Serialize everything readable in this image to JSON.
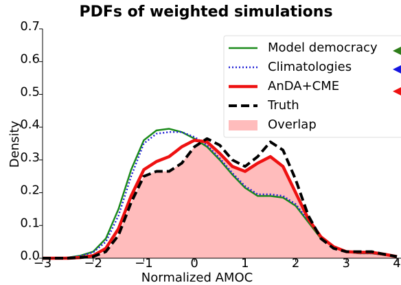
{
  "chart_data": {
    "type": "line",
    "title": "PDFs of weighted simulations",
    "x_label": "Normalized AMOC",
    "y_label": "Density",
    "x": [
      -3,
      -2.75,
      -2.5,
      -2.25,
      -2,
      -1.75,
      -1.5,
      -1.25,
      -1,
      -0.75,
      -0.5,
      -0.25,
      0,
      0.25,
      0.5,
      0.75,
      1,
      1.25,
      1.5,
      1.75,
      2,
      2.25,
      2.5,
      2.75,
      3,
      3.25,
      3.5,
      3.75,
      4
    ],
    "series": [
      {
        "name": "Model democracy",
        "color": "#1a8a1a",
        "style": "solid",
        "values": [
          0,
          0,
          0.002,
          0.008,
          0.02,
          0.06,
          0.15,
          0.27,
          0.36,
          0.39,
          0.395,
          0.385,
          0.365,
          0.34,
          0.3,
          0.255,
          0.215,
          0.19,
          0.19,
          0.185,
          0.16,
          0.11,
          0.06,
          0.035,
          0.02,
          0.015,
          0.015,
          0.01,
          0.005
        ]
      },
      {
        "name": "Climatologies",
        "color": "#1f1fd6",
        "style": "dotted",
        "values": [
          0,
          0,
          0.002,
          0.007,
          0.018,
          0.05,
          0.13,
          0.25,
          0.35,
          0.38,
          0.385,
          0.385,
          0.37,
          0.345,
          0.305,
          0.26,
          0.22,
          0.195,
          0.195,
          0.19,
          0.165,
          0.115,
          0.065,
          0.035,
          0.02,
          0.015,
          0.015,
          0.01,
          0.005
        ]
      },
      {
        "name": "AnDA+CME",
        "color": "#ee1111",
        "style": "thick",
        "values": [
          0,
          0,
          0,
          0.002,
          0.008,
          0.03,
          0.09,
          0.19,
          0.27,
          0.295,
          0.31,
          0.34,
          0.36,
          0.355,
          0.32,
          0.28,
          0.265,
          0.29,
          0.31,
          0.28,
          0.2,
          0.12,
          0.065,
          0.035,
          0.02,
          0.018,
          0.018,
          0.012,
          0.005
        ]
      },
      {
        "name": "Truth",
        "color": "#000000",
        "style": "dashed",
        "values": [
          0,
          0,
          0,
          0.002,
          0.005,
          0.02,
          0.07,
          0.17,
          0.25,
          0.265,
          0.265,
          0.29,
          0.34,
          0.365,
          0.345,
          0.3,
          0.28,
          0.31,
          0.355,
          0.33,
          0.24,
          0.13,
          0.06,
          0.03,
          0.02,
          0.02,
          0.02,
          0.012,
          0.005
        ]
      },
      {
        "name": "Overlap",
        "color": "#ffbcbc",
        "style": "fill",
        "values": [
          0,
          0,
          0,
          0.002,
          0.005,
          0.02,
          0.07,
          0.17,
          0.25,
          0.265,
          0.265,
          0.29,
          0.34,
          0.355,
          0.32,
          0.28,
          0.265,
          0.29,
          0.31,
          0.28,
          0.2,
          0.12,
          0.06,
          0.03,
          0.02,
          0.018,
          0.018,
          0.012,
          0.005
        ]
      }
    ],
    "xlim": [
      -3,
      4
    ],
    "xticks": [
      {
        "value": -3,
        "label": "−3"
      },
      {
        "value": -2,
        "label": "−2"
      },
      {
        "value": -1,
        "label": "−1"
      },
      0,
      1,
      2,
      3,
      4
    ],
    "ylim": [
      0,
      0.7
    ],
    "yticks": [
      {
        "value": 0,
        "label": "0.0"
      },
      0.1,
      0.2,
      0.3,
      0.4,
      0.5,
      0.6,
      0.7
    ],
    "legend": "upper right"
  }
}
